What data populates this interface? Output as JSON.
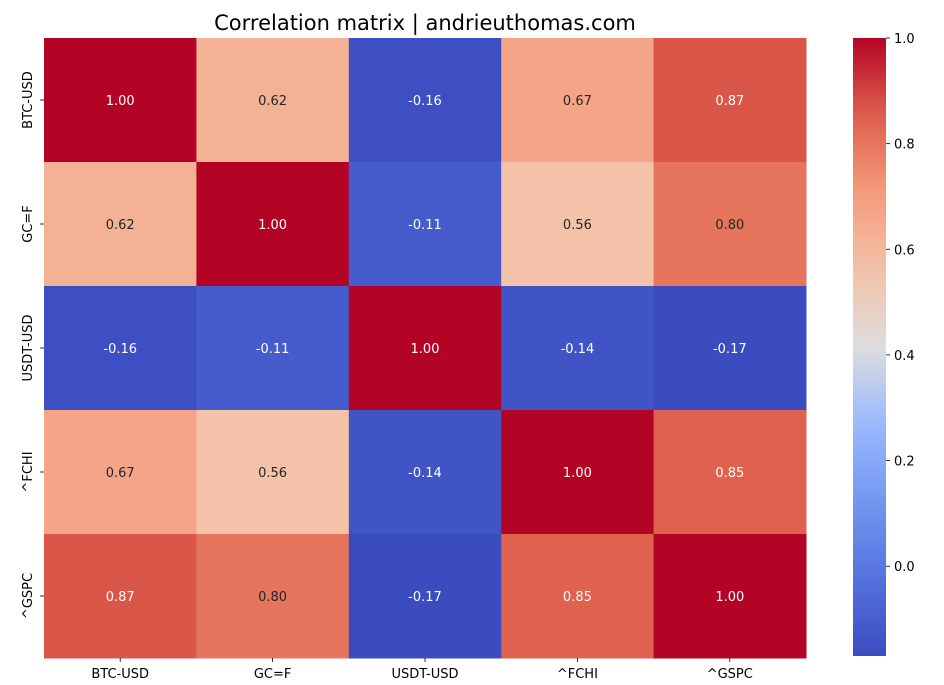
{
  "chart_data": {
    "type": "heatmap",
    "title": "Correlation matrix | andrieuthomas.com",
    "xlabel": "",
    "ylabel": "",
    "rows": [
      "BTC-USD",
      "GC=F",
      "USDT-USD",
      "^FCHI",
      "^GSPC"
    ],
    "columns": [
      "BTC-USD",
      "GC=F",
      "USDT-USD",
      "^FCHI",
      "^GSPC"
    ],
    "values": [
      [
        1.0,
        0.62,
        -0.16,
        0.67,
        0.87
      ],
      [
        0.62,
        1.0,
        -0.11,
        0.56,
        0.8
      ],
      [
        -0.16,
        -0.11,
        1.0,
        -0.14,
        -0.17
      ],
      [
        0.67,
        0.56,
        -0.14,
        1.0,
        0.85
      ],
      [
        0.87,
        0.8,
        -0.17,
        0.85,
        1.0
      ]
    ],
    "value_labels": [
      [
        "1.00",
        "0.62",
        "-0.16",
        "0.67",
        "0.87"
      ],
      [
        "0.62",
        "1.00",
        "-0.11",
        "0.56",
        "0.80"
      ],
      [
        "-0.16",
        "-0.11",
        "1.00",
        "-0.14",
        "-0.17"
      ],
      [
        "0.67",
        "0.56",
        "-0.14",
        "1.00",
        "0.85"
      ],
      [
        "0.87",
        "0.80",
        "-0.17",
        "0.85",
        "1.00"
      ]
    ],
    "colormap": "coolwarm",
    "colorbar": {
      "range": [
        -0.17,
        1.0
      ],
      "ticks": [
        0.0,
        0.2,
        0.4,
        0.6,
        0.8,
        1.0
      ],
      "tick_labels": [
        "0.0",
        "0.2",
        "0.4",
        "0.6",
        "0.8",
        "1.0"
      ]
    },
    "annotations": true
  }
}
